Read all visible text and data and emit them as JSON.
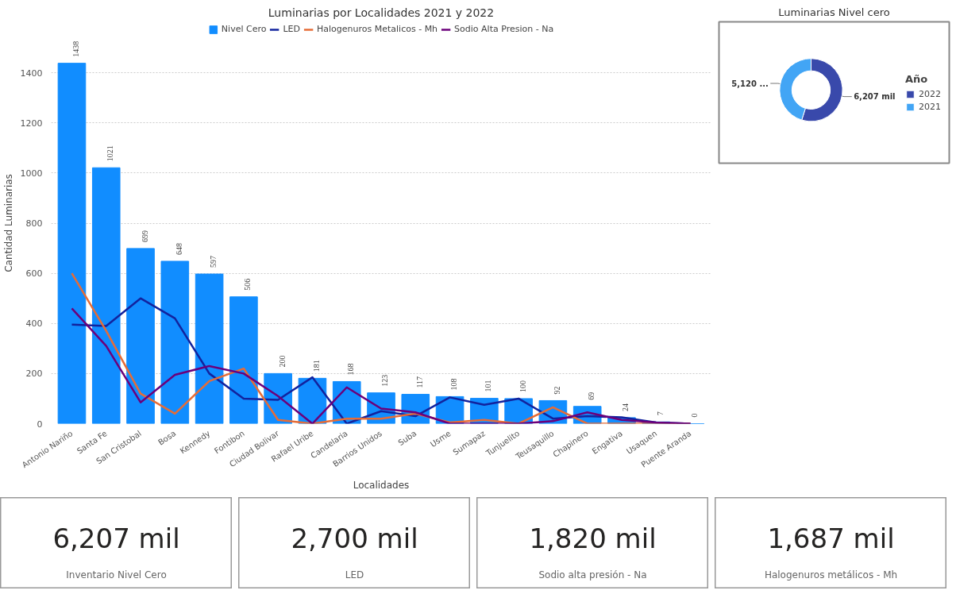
{
  "chart_data": [
    {
      "type": "bar",
      "title": "Luminarias por Localidades 2021 y 2022",
      "xlabel": "Localidades",
      "ylabel": "Cantidad Luminarias",
      "categories": [
        "Antonio Nariño",
        "Santa Fe",
        "San Cristobal",
        "Bosa",
        "Kennedy",
        "Fontibon",
        "Ciudad Bolivar",
        "Rafael Uribe",
        "Candelaria",
        "Barrios Unidos",
        "Suba",
        "Usme",
        "Sumapaz",
        "Tunjuelito",
        "Teusaquillo",
        "Chapinero",
        "Engativa",
        "Usaquen",
        "Puente Aranda"
      ],
      "series": [
        {
          "name": "Nivel Cero",
          "type": "bar",
          "color": "#118dff",
          "values": [
            1438,
            1021,
            699,
            648,
            597,
            506,
            200,
            181,
            168,
            123,
            117,
            108,
            101,
            100,
            92,
            69,
            24,
            7,
            0
          ],
          "value_labels": [
            "1438",
            "1021",
            "699",
            "648",
            "597",
            "506",
            "200",
            "181",
            "168",
            "123",
            "117",
            "108",
            "101",
            "100",
            "92",
            "69",
            "24",
            "7",
            "0"
          ]
        },
        {
          "name": "LED",
          "type": "line",
          "color": "#12239e",
          "values": [
            395,
            390,
            500,
            420,
            200,
            100,
            95,
            185,
            0,
            50,
            30,
            105,
            75,
            100,
            20,
            30,
            25,
            5,
            0
          ]
        },
        {
          "name": "Halogenuros Metalicos - Mh",
          "type": "line",
          "color": "#e66c37",
          "values": [
            600,
            370,
            120,
            40,
            170,
            220,
            15,
            0,
            20,
            20,
            40,
            5,
            15,
            0,
            65,
            0,
            0,
            0,
            0
          ]
        },
        {
          "name": "Sodio Alta Presion - Na",
          "type": "line",
          "color": "#6b007b",
          "values": [
            460,
            310,
            85,
            195,
            230,
            200,
            110,
            0,
            145,
            60,
            45,
            0,
            0,
            0,
            10,
            45,
            15,
            5,
            0
          ]
        }
      ],
      "ylim": [
        0,
        1600
      ],
      "yticks": [
        0,
        200,
        400,
        600,
        800,
        1000,
        1200,
        1400
      ],
      "grid": "y",
      "legend": "top",
      "marker": "none",
      "line_style": "solid"
    },
    {
      "type": "donut",
      "title": "Luminarias Nivel cero",
      "legend_title": "Año",
      "categories": [
        "2022",
        "2021"
      ],
      "values": [
        6207,
        5120
      ],
      "colors": [
        "#3949ab",
        "#42a5f5"
      ],
      "value_labels": [
        "6,207 mil",
        "5,120 ..."
      ],
      "legend": "right"
    },
    {
      "type": "other",
      "title": "6,207 mil",
      "subtitle": "Inventario Nivel Cero"
    },
    {
      "type": "other",
      "title": "2,700 mil",
      "subtitle": "LED"
    },
    {
      "type": "other",
      "title": "1,820 mil",
      "subtitle": "Sodio alta presión - Na"
    },
    {
      "type": "other",
      "title": "1,687 mil",
      "subtitle": "Halogenuros metálicos - Mh"
    }
  ]
}
